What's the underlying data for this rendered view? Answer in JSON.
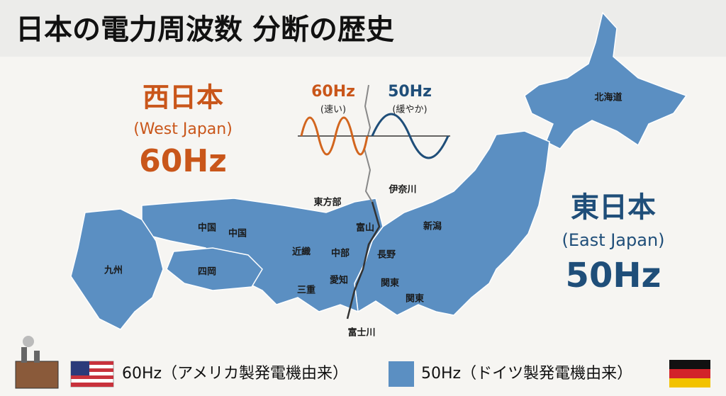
{
  "title": "日本の電力周波数 分断の歴史",
  "west": {
    "name": "西日本",
    "english": "(West Japan)",
    "frequency": "60Hz"
  },
  "east": {
    "name": "東日本",
    "english": "(East Japan)",
    "frequency": "50Hz"
  },
  "waves": {
    "west": {
      "frequency": "60Hz",
      "note": "(速い)"
    },
    "east": {
      "frequency": "50Hz",
      "note": "(緩やか)"
    }
  },
  "map_labels": [
    "北海道",
    "東方部",
    "伊奈川",
    "富山",
    "新潟",
    "中国",
    "中国",
    "近織",
    "中部",
    "長野",
    "九州",
    "四岡",
    "三重",
    "愛知",
    "関東",
    "関東",
    "富士川"
  ],
  "legend": [
    {
      "label": "60Hz（アメリカ製発電機由来）"
    },
    {
      "label": "50Hz（ドイツ製発電機由来）"
    }
  ]
}
